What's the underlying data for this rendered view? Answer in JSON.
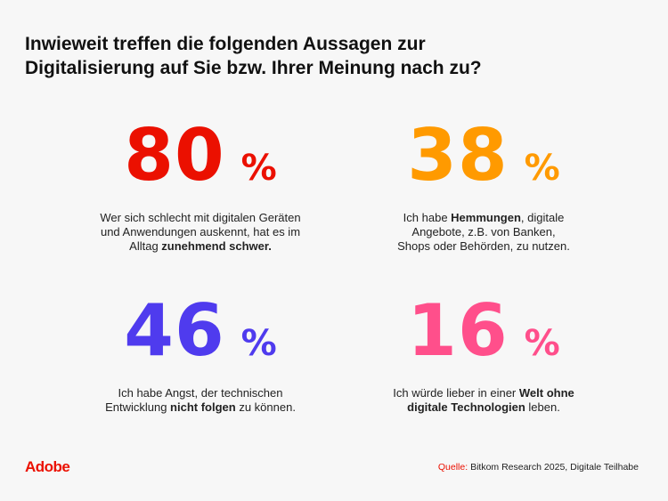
{
  "title": {
    "line1": "Inwieweit treffen die folgenden Aussagen zur",
    "line2": "Digitalisierung auf Sie bzw. Ihrer Meinung nach zu?"
  },
  "stats": [
    {
      "value": "80",
      "unit": "%",
      "color": "#EB1000",
      "text": [
        "Wer sich schlecht mit digitalen Geräten",
        "und Anwendungen auskennt, hat es im",
        "Alltag ",
        "zunehmend schwer."
      ]
    },
    {
      "value": "38",
      "unit": "%",
      "color": "#FF9A00",
      "text": [
        "Ich habe ",
        "Hemmungen",
        ", digitale",
        "Angebote, z.B. von Banken,",
        "Shops oder Behörden, zu nutzen."
      ]
    },
    {
      "value": "46",
      "unit": "%",
      "color": "#4F3BEE",
      "text": [
        "Ich habe Angst, der technischen",
        "Entwicklung ",
        "nicht folgen",
        " zu können."
      ]
    },
    {
      "value": "16",
      "unit": "%",
      "color": "#FF4F8B",
      "text": [
        "Ich würde lieber in einer ",
        "Welt ohne",
        "digitale Technologien",
        " leben."
      ]
    }
  ],
  "footer": {
    "logo": "Adobe",
    "source_label": "Quelle:",
    "source_text": " Bitkom Research 2025, Digitale Teilhabe",
    "brand_color": "#EB1000"
  }
}
